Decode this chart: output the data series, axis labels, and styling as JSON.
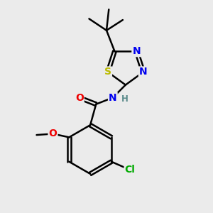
{
  "bg_color": "#ebebeb",
  "bond_color": "#000000",
  "bond_width": 1.8,
  "atom_colors": {
    "C": "#000000",
    "H": "#5a8a8a",
    "N": "#0000ee",
    "O": "#ee0000",
    "S": "#bbbb00",
    "Cl": "#00aa00"
  },
  "font_size": 10,
  "font_size_small": 8.5
}
